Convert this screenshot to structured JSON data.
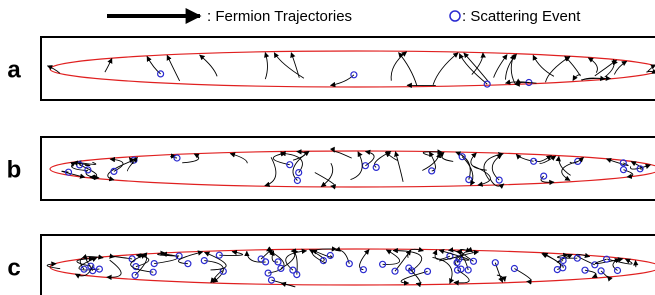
{
  "legend": {
    "trajectory": ": Fermion Trajectories",
    "scattering": ": Scattering Event"
  },
  "panels": [
    {
      "label": "a"
    },
    {
      "label": "b"
    },
    {
      "label": "c"
    }
  ]
}
